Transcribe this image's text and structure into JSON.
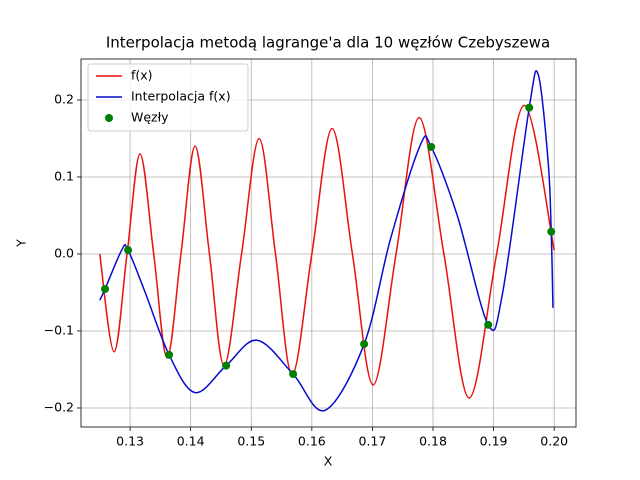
{
  "chart_data": {
    "type": "line",
    "title": "Interpolacja metodą lagrange'a dla 10 węzłów Czebyszewa",
    "x_label": "X",
    "y_label": "Y",
    "xlim": [
      0.1219,
      0.2036
    ],
    "ylim": [
      -0.2247,
      0.2532
    ],
    "xticks": [
      0.13,
      0.14,
      0.15,
      0.16,
      0.17,
      0.18,
      0.19,
      {
        "value": 0.2,
        "label": "0.20"
      }
    ],
    "yticks": [
      {
        "value": -0.2,
        "label": "−0.2"
      },
      {
        "value": -0.1,
        "label": "−0.1"
      },
      {
        "value": 0,
        "label": "0.0"
      },
      0.1,
      0.2
    ],
    "grid": true,
    "legend": "upper left",
    "series": [
      {
        "name": "f(x)",
        "type": "line",
        "color": "#e8120c",
        "x": [
          0.125,
          0.12736,
          0.1295,
          0.13165,
          0.1339,
          0.13611,
          0.1384,
          0.14073,
          0.1431,
          0.14552,
          0.1484,
          0.1513,
          0.154,
          0.15675,
          0.16,
          0.16335,
          0.1667,
          0.17012,
          0.1739,
          0.17771,
          0.1818,
          0.18597,
          0.1905,
          0.19505,
          0.2
        ],
        "values": [
          0,
          -0.127,
          0,
          0.13,
          0,
          -0.135,
          0,
          0.14,
          0,
          -0.145,
          0,
          0.15,
          0,
          -0.157,
          0,
          0.163,
          0,
          -0.17,
          0,
          0.177,
          0,
          -0.187,
          0,
          0.193,
          0.005
        ]
      },
      {
        "name": "Interpolacja f(x)",
        "type": "line",
        "color": "#0a0ad0",
        "x": [
          0.125,
          0.12587,
          0.12868,
          0.12967,
          0.1325,
          0.13644,
          0.14073,
          0.14585,
          0.15097,
          0.15691,
          0.16219,
          0.16863,
          0.173,
          0.17788,
          0.1797,
          0.184,
          0.18911,
          0.1915,
          0.19588,
          0.19736,
          0.199,
          0.19951,
          0.1998
        ],
        "values": [
          -0.06,
          -0.0455,
          0.006,
          0.005,
          -0.05,
          -0.131,
          -0.18,
          -0.145,
          -0.112,
          -0.156,
          -0.203,
          -0.117,
          0.02,
          0.141,
          0.139,
          0.05,
          -0.092,
          -0.05,
          0.19,
          0.233,
          0.12,
          0.029,
          -0.07
        ]
      },
      {
        "name": "Węzły",
        "type": "scatter",
        "color": "#008000",
        "x": [
          0.12587,
          0.12967,
          0.13644,
          0.14585,
          0.15691,
          0.16863,
          0.1797,
          0.18911,
          0.19588,
          0.19951
        ],
        "values": [
          -0.0455,
          0.005,
          -0.131,
          -0.145,
          -0.156,
          -0.117,
          0.139,
          -0.092,
          0.19,
          0.029
        ]
      }
    ]
  }
}
